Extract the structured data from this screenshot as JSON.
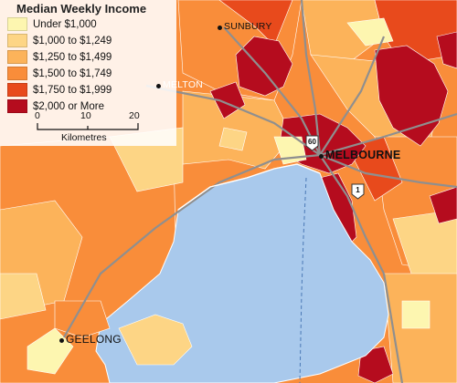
{
  "legend": {
    "title": "Median Weekly Income",
    "classes": [
      {
        "label": "Under $1,000",
        "color": "#fdf6b0"
      },
      {
        "label": "$1,000 to $1,249",
        "color": "#fdd585"
      },
      {
        "label": "$1,250 to $1,499",
        "color": "#fcb35a"
      },
      {
        "label": "$1,500 to $1,749",
        "color": "#f98d3a"
      },
      {
        "label": "$1,750 to $1,999",
        "color": "#e84a1c"
      },
      {
        "label": "$2,000 or More",
        "color": "#b50c1e"
      }
    ],
    "scale": {
      "ticks": [
        "0",
        "10",
        "20"
      ],
      "unit": "Kilometres"
    }
  },
  "places": {
    "sunbury": "SUNBURY",
    "melton": "MELTON",
    "melbourne": "MELBOURNE",
    "geelong": "GEELONG"
  },
  "route_shields": {
    "m60": "60",
    "m1": "1"
  },
  "colors": {
    "water": "#a9c9ec",
    "roads": "#8f8f8f",
    "border": "#ffffff"
  }
}
